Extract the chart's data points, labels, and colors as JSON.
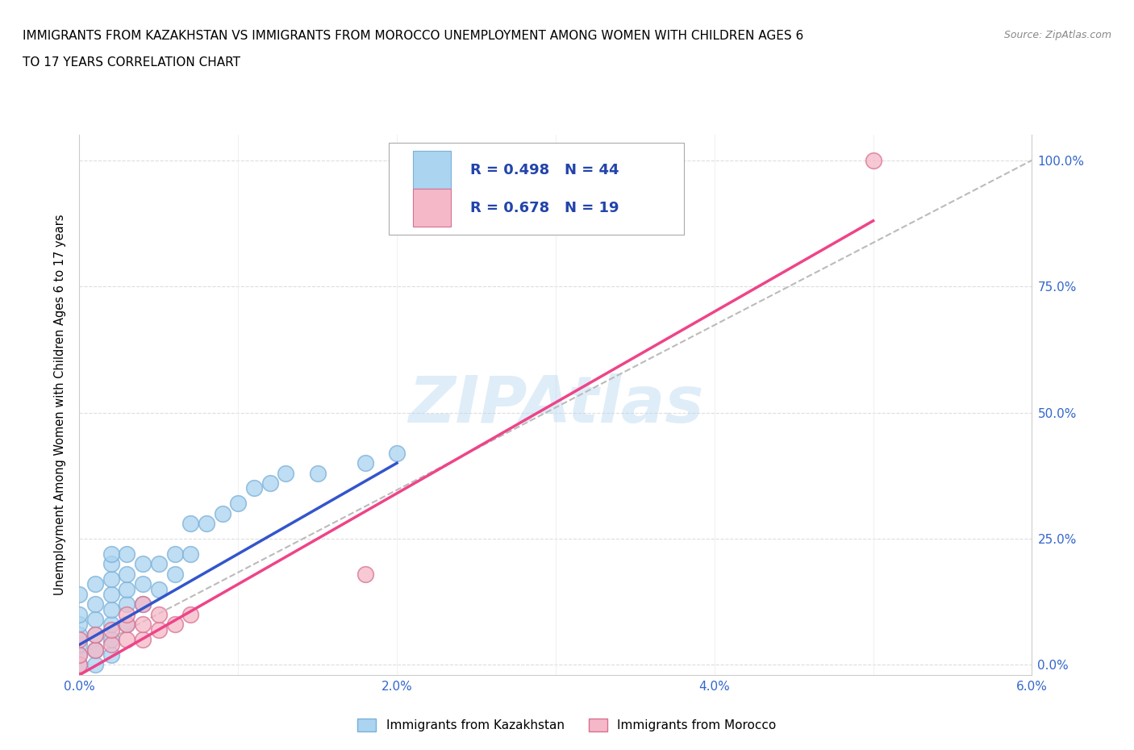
{
  "title_line1": "IMMIGRANTS FROM KAZAKHSTAN VS IMMIGRANTS FROM MOROCCO UNEMPLOYMENT AMONG WOMEN WITH CHILDREN AGES 6",
  "title_line2": "TO 17 YEARS CORRELATION CHART",
  "source": "Source: ZipAtlas.com",
  "ylabel": "Unemployment Among Women with Children Ages 6 to 17 years",
  "xlim": [
    0.0,
    0.06
  ],
  "ylim": [
    -0.02,
    1.05
  ],
  "x_ticks": [
    0.0,
    0.01,
    0.02,
    0.03,
    0.04,
    0.05,
    0.06
  ],
  "x_tick_labels": [
    "0.0%",
    "",
    "2.0%",
    "",
    "4.0%",
    "",
    "6.0%"
  ],
  "y_ticks": [
    0.0,
    0.25,
    0.5,
    0.75,
    1.0
  ],
  "y_tick_labels": [
    "0.0%",
    "25.0%",
    "50.0%",
    "75.0%",
    "100.0%"
  ],
  "watermark": "ZIPAtlas",
  "kaz_color": "#aad4f0",
  "kaz_edge_color": "#7ab0d8",
  "mor_color": "#f5b8c8",
  "mor_edge_color": "#d87090",
  "kaz_R": 0.498,
  "kaz_N": 44,
  "mor_R": 0.678,
  "mor_N": 19,
  "kaz_line_color": "#3355cc",
  "mor_line_color": "#ee4488",
  "legend_R_color": "#2244aa",
  "kaz_x": [
    0.0,
    0.0,
    0.0,
    0.0,
    0.0,
    0.0,
    0.0,
    0.001,
    0.001,
    0.001,
    0.001,
    0.001,
    0.001,
    0.002,
    0.002,
    0.002,
    0.002,
    0.002,
    0.002,
    0.002,
    0.002,
    0.003,
    0.003,
    0.003,
    0.003,
    0.003,
    0.004,
    0.004,
    0.004,
    0.005,
    0.005,
    0.006,
    0.006,
    0.007,
    0.007,
    0.008,
    0.009,
    0.01,
    0.011,
    0.012,
    0.013,
    0.015,
    0.018,
    0.02
  ],
  "kaz_y": [
    0.0,
    0.02,
    0.04,
    0.06,
    0.08,
    0.1,
    0.14,
    0.0,
    0.03,
    0.06,
    0.09,
    0.12,
    0.16,
    0.02,
    0.05,
    0.08,
    0.11,
    0.14,
    0.17,
    0.2,
    0.22,
    0.08,
    0.12,
    0.15,
    0.18,
    0.22,
    0.12,
    0.16,
    0.2,
    0.15,
    0.2,
    0.18,
    0.22,
    0.22,
    0.28,
    0.28,
    0.3,
    0.32,
    0.35,
    0.36,
    0.38,
    0.38,
    0.4,
    0.42
  ],
  "mor_x": [
    0.0,
    0.0,
    0.0,
    0.001,
    0.001,
    0.002,
    0.002,
    0.003,
    0.003,
    0.003,
    0.004,
    0.004,
    0.004,
    0.005,
    0.005,
    0.006,
    0.007,
    0.018,
    0.05
  ],
  "mor_y": [
    0.0,
    0.02,
    0.05,
    0.03,
    0.06,
    0.04,
    0.07,
    0.05,
    0.08,
    0.1,
    0.05,
    0.08,
    0.12,
    0.07,
    0.1,
    0.08,
    0.1,
    0.18,
    1.0
  ],
  "kaz_line_x0": 0.0,
  "kaz_line_x1": 0.02,
  "kaz_line_y0": 0.04,
  "kaz_line_y1": 0.4,
  "mor_line_x0": 0.0,
  "mor_line_x1": 0.05,
  "mor_line_y0": -0.02,
  "mor_line_y1": 0.88,
  "dash_line_x0": 0.0,
  "dash_line_x1": 0.06,
  "dash_line_y0": 0.02,
  "dash_line_y1": 1.0
}
